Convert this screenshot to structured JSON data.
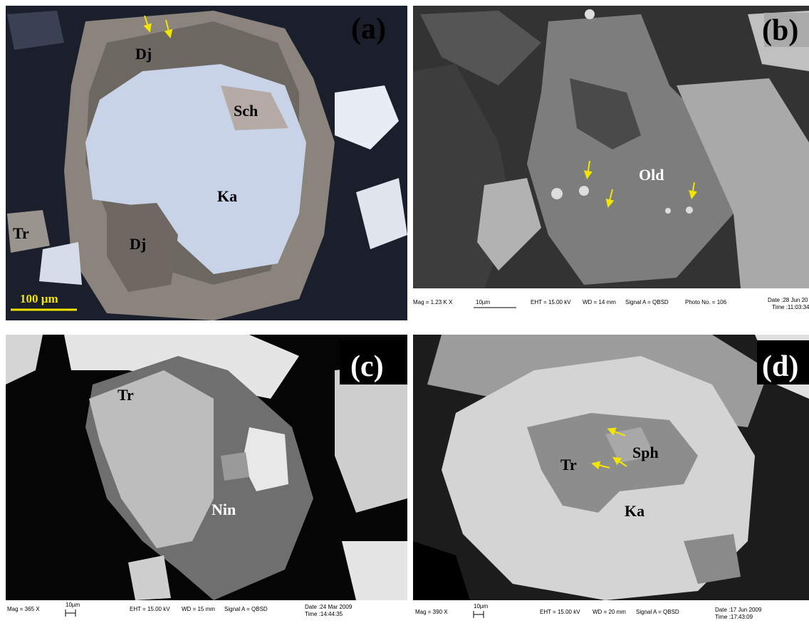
{
  "panels": [
    {
      "label": "(a)",
      "annotations": [
        "Dj",
        "Sch",
        "Ka",
        "Tr",
        "Dj"
      ],
      "scale_bar": "100 µm"
    },
    {
      "label": "(b)",
      "annotations": [
        "Old"
      ],
      "info_bar": [
        "Mag = 1.23 K X",
        "10µm",
        "EHT = 15.00 kV",
        "WD = 14 mm",
        "Signal A = QBSD",
        "Photo No. = 106",
        "Date :28 Jun 20",
        "Time :11:03:34"
      ]
    },
    {
      "label": "(c)",
      "annotations": [
        "Tr",
        "Nin"
      ],
      "info_bar": [
        "Mag = 365 X",
        "10µm",
        "EHT = 15.00 kV",
        "WD = 15 mm",
        "Signal A = QBSD",
        "Date :24 Mar 2009",
        "Time :14:44:35"
      ]
    },
    {
      "label": "(d)",
      "annotations": [
        "Tr",
        "Sph",
        "Ka"
      ],
      "info_bar": [
        "Mag = 390 X",
        "10µm",
        "EHT = 15.00 kV",
        "WD = 20 mm",
        "Signal A = QBSD",
        "Date :17 Jun 2009",
        "Time :17:43:09"
      ]
    }
  ]
}
